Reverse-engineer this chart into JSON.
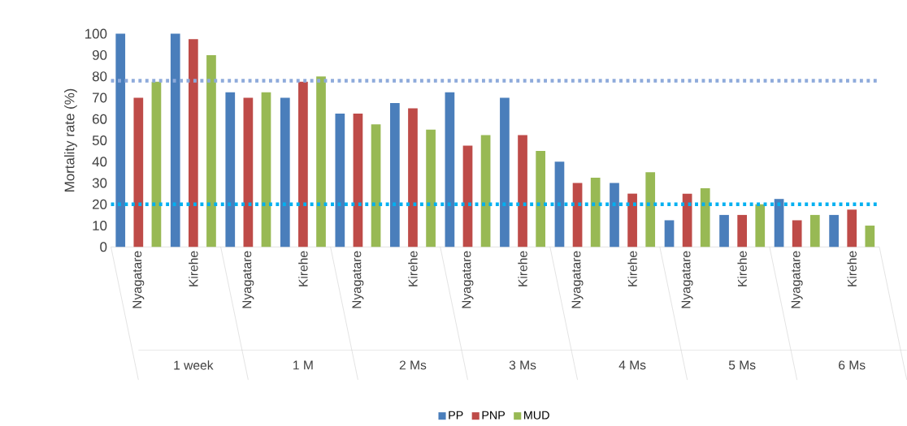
{
  "chart_data": {
    "type": "bar",
    "ylabel": "Mortality rate (%)",
    "categories": [
      "Nyagatare",
      "Kirehe",
      "Nyagatare",
      "Kirehe",
      "Nyagatare",
      "Kirehe",
      "Nyagatare",
      "Kirehe",
      "Nyagatare",
      "Kirehe",
      "Nyagatare",
      "Kirehe",
      "Nyagatare",
      "Kirehe"
    ],
    "annotations": [
      "1 week",
      "1 M",
      "2 Ms",
      "3 Ms",
      "4 Ms",
      "5 Ms",
      "6 Ms"
    ],
    "series": [
      {
        "name": "PP",
        "color": "#4a7ebb",
        "values": [
          100,
          100,
          72.5,
          70,
          62.5,
          67.5,
          72.5,
          70,
          40,
          30,
          12.5,
          15,
          22.5,
          15
        ]
      },
      {
        "name": "PNP",
        "color": "#be4b48",
        "values": [
          70,
          97.5,
          70,
          77.5,
          62.5,
          65,
          47.5,
          52.5,
          30,
          25,
          25,
          15,
          12.5,
          17.5
        ]
      },
      {
        "name": "MUD",
        "color": "#98b954",
        "values": [
          77.5,
          90,
          72.5,
          80,
          57.5,
          55,
          52.5,
          45,
          32.5,
          35,
          27.5,
          20,
          15,
          10
        ]
      }
    ],
    "ref_lines": [
      {
        "axis": "y",
        "value": 78,
        "color": "#8eaadb",
        "line_style": "dotted"
      },
      {
        "axis": "y",
        "value": 20,
        "color": "#00b0f0",
        "line_style": "dotted"
      }
    ],
    "ylim": [
      0,
      100
    ],
    "yticks": [
      0,
      10,
      20,
      30,
      40,
      50,
      60,
      70,
      80,
      90,
      100
    ],
    "grid": false,
    "legend": "bottom"
  }
}
